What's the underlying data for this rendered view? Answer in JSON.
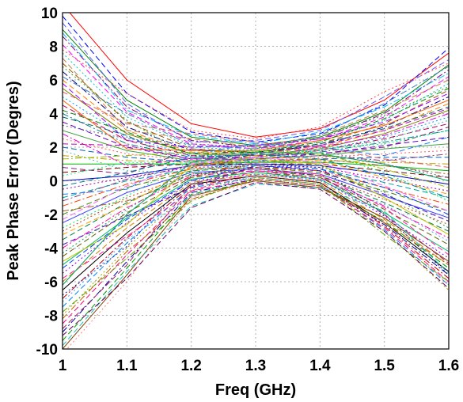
{
  "chart_data": {
    "type": "line",
    "title": "",
    "xlabel": "Freq (GHz)",
    "ylabel": "Peak Phase Error (Degres)",
    "xlim": [
      1.0,
      1.6
    ],
    "ylim": [
      -10,
      10
    ],
    "x_ticks": [
      "1",
      "1.1",
      "1.2",
      "1.3",
      "1.4",
      "1.5",
      "1.6"
    ],
    "y_ticks": [
      "10",
      "8",
      "6",
      "4",
      "2",
      "0",
      "-2",
      "-4",
      "-6",
      "-8",
      "-10"
    ],
    "grid": true,
    "legend": "none",
    "x": [
      1.0,
      1.1,
      1.2,
      1.3,
      1.4,
      1.5,
      1.6
    ],
    "series": [
      {
        "color": "#ff0000",
        "dash": "solid",
        "values": [
          10.5,
          6.0,
          3.4,
          2.6,
          3.1,
          4.8,
          7.6
        ]
      },
      {
        "color": "#0000ff",
        "dash": "dashed",
        "values": [
          9.8,
          5.2,
          2.9,
          2.3,
          2.8,
          4.5,
          7.9
        ]
      },
      {
        "color": "#008000",
        "dash": "solid",
        "values": [
          9.0,
          4.8,
          2.6,
          2.1,
          2.6,
          4.1,
          6.9
        ]
      },
      {
        "color": "#800080",
        "dash": "dashdot",
        "values": [
          8.6,
          4.4,
          2.4,
          2.0,
          2.5,
          4.0,
          6.6
        ]
      },
      {
        "color": "#ff00ff",
        "dash": "dashed",
        "values": [
          8.1,
          4.1,
          2.2,
          1.9,
          2.4,
          3.8,
          6.2
        ]
      },
      {
        "color": "#00c0c0",
        "dash": "dotted",
        "values": [
          7.6,
          3.8,
          2.0,
          1.8,
          2.3,
          3.6,
          5.8
        ]
      },
      {
        "color": "#a05000",
        "dash": "dashed",
        "values": [
          7.0,
          3.5,
          1.9,
          1.7,
          2.2,
          3.4,
          5.4
        ]
      },
      {
        "color": "#000080",
        "dash": "dashdot",
        "values": [
          6.5,
          3.2,
          1.8,
          1.7,
          2.1,
          3.2,
          5.0
        ]
      },
      {
        "color": "#ff8000",
        "dash": "dashed",
        "values": [
          6.0,
          3.0,
          1.7,
          1.6,
          2.0,
          3.0,
          4.6
        ]
      },
      {
        "color": "#808000",
        "dash": "solid",
        "values": [
          5.5,
          2.8,
          1.6,
          1.5,
          1.9,
          2.8,
          4.2
        ]
      },
      {
        "color": "#00a0ff",
        "dash": "dotted",
        "values": [
          5.0,
          2.6,
          1.5,
          1.5,
          1.8,
          2.6,
          3.8
        ]
      },
      {
        "color": "#c00060",
        "dash": "dashed",
        "values": [
          4.5,
          2.4,
          1.5,
          1.4,
          1.8,
          2.5,
          3.4
        ]
      },
      {
        "color": "#008080",
        "dash": "dashdot",
        "values": [
          4.0,
          2.2,
          1.4,
          1.4,
          1.7,
          2.3,
          3.0
        ]
      },
      {
        "color": "#6000c0",
        "dash": "dashed",
        "values": [
          3.5,
          2.0,
          1.3,
          1.3,
          1.6,
          2.1,
          2.6
        ]
      },
      {
        "color": "#40a040",
        "dash": "solid",
        "values": [
          3.0,
          1.8,
          1.2,
          1.3,
          1.5,
          1.9,
          2.2
        ]
      },
      {
        "color": "#ff6060",
        "dash": "dotted",
        "values": [
          2.5,
          1.6,
          1.2,
          1.2,
          1.4,
          1.6,
          1.8
        ]
      },
      {
        "color": "#0060c0",
        "dash": "dashed",
        "values": [
          2.0,
          1.4,
          1.1,
          1.2,
          1.3,
          1.4,
          1.4
        ]
      },
      {
        "color": "#c0a000",
        "dash": "dashdot",
        "values": [
          1.5,
          1.2,
          1.1,
          1.1,
          1.2,
          1.1,
          1.0
        ]
      },
      {
        "color": "#00b000",
        "dash": "solid",
        "values": [
          1.0,
          1.0,
          1.0,
          1.1,
          1.1,
          0.9,
          0.6
        ]
      },
      {
        "color": "#800000",
        "dash": "dashed",
        "values": [
          0.5,
          0.8,
          1.0,
          1.0,
          1.0,
          0.6,
          0.2
        ]
      },
      {
        "color": "#0000c0",
        "dash": "solid",
        "values": [
          0.0,
          0.3,
          0.9,
          1.0,
          0.9,
          0.4,
          -0.2
        ]
      },
      {
        "color": "#a000a0",
        "dash": "dotted",
        "values": [
          -0.5,
          0.2,
          0.8,
          0.9,
          0.8,
          0.1,
          -0.6
        ]
      },
      {
        "color": "#00a0a0",
        "dash": "dashed",
        "values": [
          -1.0,
          0.0,
          0.7,
          0.9,
          0.7,
          -0.1,
          -1.0
        ]
      },
      {
        "color": "#ff4000",
        "dash": "dashdot",
        "values": [
          -1.5,
          -0.2,
          0.7,
          0.8,
          0.6,
          -0.4,
          -1.4
        ]
      },
      {
        "color": "#408000",
        "dash": "dashed",
        "values": [
          -2.0,
          -0.4,
          0.6,
          0.8,
          0.5,
          -0.6,
          -1.8
        ]
      },
      {
        "color": "#4040ff",
        "dash": "solid",
        "values": [
          -2.5,
          -0.7,
          0.5,
          0.7,
          0.4,
          -0.9,
          -2.2
        ]
      },
      {
        "color": "#c04000",
        "dash": "dotted",
        "values": [
          -3.0,
          -1.0,
          0.4,
          0.7,
          0.3,
          -1.1,
          -2.6
        ]
      },
      {
        "color": "#008040",
        "dash": "dashed",
        "values": [
          -3.5,
          -1.3,
          0.4,
          0.6,
          0.3,
          -1.3,
          -3.0
        ]
      },
      {
        "color": "#ff00a0",
        "dash": "dashdot",
        "values": [
          -4.0,
          -1.6,
          0.3,
          0.6,
          0.2,
          -1.5,
          -3.4
        ]
      },
      {
        "color": "#606000",
        "dash": "dashed",
        "values": [
          -4.5,
          -1.9,
          0.2,
          0.5,
          0.2,
          -1.7,
          -3.8
        ]
      },
      {
        "color": "#00c060",
        "dash": "solid",
        "values": [
          -5.0,
          -2.2,
          0.1,
          0.5,
          0.1,
          -1.9,
          -4.2
        ]
      },
      {
        "color": "#8000ff",
        "dash": "dotted",
        "values": [
          -5.5,
          -2.5,
          0.0,
          0.4,
          0.1,
          -2.1,
          -4.6
        ]
      },
      {
        "color": "#d08000",
        "dash": "dashed",
        "values": [
          -6.0,
          -2.8,
          -0.1,
          0.4,
          0.0,
          -2.3,
          -5.0
        ]
      },
      {
        "color": "#000000",
        "dash": "solid",
        "values": [
          -6.5,
          -3.1,
          -0.2,
          0.3,
          -0.1,
          -2.5,
          -5.4
        ]
      },
      {
        "color": "#c00000",
        "dash": "dashdot",
        "values": [
          -7.0,
          -3.4,
          -0.3,
          0.3,
          -0.1,
          -2.7,
          -5.8
        ]
      },
      {
        "color": "#0080ff",
        "dash": "dashed",
        "values": [
          -7.5,
          -3.7,
          -0.4,
          0.2,
          -0.2,
          -2.9,
          -6.2
        ]
      },
      {
        "color": "#a0a000",
        "dash": "dotted",
        "values": [
          -8.0,
          -4.0,
          -0.5,
          0.2,
          -0.2,
          -3.0,
          -6.5
        ]
      },
      {
        "color": "#ff0080",
        "dash": "dashed",
        "values": [
          -8.5,
          -4.4,
          -0.6,
          0.1,
          -0.3,
          -2.8,
          -6.0
        ]
      },
      {
        "color": "#0000a0",
        "dash": "dashdot",
        "values": [
          -9.0,
          -4.8,
          -0.7,
          0.1,
          -0.3,
          -2.6,
          -5.6
        ]
      },
      {
        "color": "#00a000",
        "dash": "dashed",
        "values": [
          -9.5,
          -5.2,
          -0.8,
          0.0,
          -0.4,
          -2.4,
          -5.2
        ]
      },
      {
        "color": "#804000",
        "dash": "solid",
        "values": [
          -10.0,
          -5.6,
          -0.9,
          0.0,
          -0.4,
          -2.2,
          -4.8
        ]
      },
      {
        "color": "#ff8080",
        "dash": "dotted",
        "values": [
          -10.3,
          -6.0,
          -1.0,
          -0.1,
          -0.5,
          -2.4,
          -6.2
        ]
      },
      {
        "color": "#6060ff",
        "dash": "dashed",
        "values": [
          9.4,
          4.6,
          2.3,
          2.4,
          3.0,
          5.0,
          7.2
        ]
      },
      {
        "color": "#00c0ff",
        "dash": "dashdot",
        "values": [
          8.8,
          4.2,
          2.7,
          2.2,
          2.9,
          4.4,
          6.4
        ]
      },
      {
        "color": "#c08040",
        "dash": "dashed",
        "values": [
          7.3,
          3.0,
          2.5,
          2.0,
          2.7,
          4.2,
          6.0
        ]
      },
      {
        "color": "#20a020",
        "dash": "dotted",
        "values": [
          6.8,
          3.6,
          1.4,
          1.9,
          2.6,
          3.9,
          5.6
        ]
      },
      {
        "color": "#a000ff",
        "dash": "dashed",
        "values": [
          5.8,
          2.4,
          2.0,
          2.1,
          2.5,
          3.5,
          5.2
        ]
      },
      {
        "color": "#ff6000",
        "dash": "solid",
        "values": [
          4.8,
          1.9,
          1.8,
          1.8,
          2.4,
          3.3,
          4.8
        ]
      },
      {
        "color": "#006060",
        "dash": "dashed",
        "values": [
          3.8,
          2.7,
          0.8,
          1.6,
          2.2,
          3.1,
          4.4
        ]
      },
      {
        "color": "#e000e0",
        "dash": "dashdot",
        "values": [
          2.8,
          0.9,
          1.3,
          1.4,
          2.0,
          2.7,
          4.0
        ]
      },
      {
        "color": "#40c0a0",
        "dash": "dotted",
        "values": [
          1.8,
          0.6,
          0.5,
          1.2,
          1.8,
          2.4,
          3.6
        ]
      },
      {
        "color": "#802080",
        "dash": "dashed",
        "values": [
          0.8,
          0.4,
          1.9,
          1.5,
          1.6,
          2.0,
          3.2
        ]
      },
      {
        "color": "#2080ff",
        "dash": "dashed",
        "values": [
          -0.8,
          -0.5,
          1.6,
          2.2,
          2.0,
          1.5,
          2.6
        ]
      },
      {
        "color": "#a06020",
        "dash": "dashdot",
        "values": [
          -1.8,
          -1.2,
          0.2,
          1.1,
          1.3,
          0.9,
          0.4
        ]
      },
      {
        "color": "#00e060",
        "dash": "dotted",
        "values": [
          -2.8,
          -0.9,
          1.2,
          1.8,
          1.7,
          0.5,
          -1.2
        ]
      },
      {
        "color": "#4000c0",
        "dash": "dashed",
        "values": [
          -3.8,
          -2.1,
          -0.4,
          0.9,
          0.6,
          -0.8,
          -2.4
        ]
      },
      {
        "color": "#c0c000",
        "dash": "solid",
        "values": [
          -4.8,
          -2.6,
          0.9,
          1.3,
          1.0,
          -1.0,
          -3.2
        ]
      },
      {
        "color": "#ff20a0",
        "dash": "dashed",
        "values": [
          -5.8,
          -3.3,
          -0.6,
          0.6,
          0.4,
          -1.6,
          -4.4
        ]
      },
      {
        "color": "#2020a0",
        "dash": "dotted",
        "values": [
          -6.8,
          -3.9,
          0.3,
          1.0,
          0.8,
          -2.0,
          -5.6
        ]
      },
      {
        "color": "#60a000",
        "dash": "dashdot",
        "values": [
          -7.8,
          -4.6,
          -1.2,
          0.2,
          -0.2,
          -3.2,
          -6.0
        ]
      },
      {
        "color": "#a02060",
        "dash": "dashed",
        "values": [
          -8.8,
          -5.0,
          -0.2,
          0.8,
          0.3,
          -2.0,
          -4.9
        ]
      },
      {
        "color": "#20c0c0",
        "dash": "dashed",
        "values": [
          -9.8,
          -5.4,
          -1.5,
          -0.2,
          -0.4,
          -1.8,
          -5.5
        ]
      },
      {
        "color": "#ff4040",
        "dash": "dotted",
        "values": [
          7.8,
          5.2,
          3.0,
          2.5,
          3.2,
          5.3,
          7.0
        ]
      },
      {
        "color": "#4080c0",
        "dash": "dashdot",
        "values": [
          6.2,
          4.0,
          2.1,
          1.9,
          2.7,
          4.6,
          6.8
        ]
      },
      {
        "color": "#008000",
        "dash": "dashed",
        "values": [
          4.2,
          2.9,
          1.6,
          1.7,
          2.3,
          3.7,
          5.5
        ]
      },
      {
        "color": "#c000c0",
        "dash": "dashed",
        "values": [
          2.2,
          2.1,
          1.3,
          1.6,
          2.1,
          3.0,
          4.3
        ]
      },
      {
        "color": "#00ff80",
        "dash": "dotted",
        "values": [
          0.3,
          1.1,
          1.0,
          1.4,
          1.9,
          2.2,
          3.0
        ]
      },
      {
        "color": "#804080",
        "dash": "dashdot",
        "values": [
          -1.2,
          0.1,
          0.9,
          1.3,
          1.5,
          1.2,
          1.6
        ]
      },
      {
        "color": "#ffa000",
        "dash": "dashed",
        "values": [
          -3.2,
          -1.4,
          0.8,
          1.5,
          1.2,
          0.2,
          -0.8
        ]
      },
      {
        "color": "#0040ff",
        "dash": "dashed",
        "values": [
          -5.2,
          -2.3,
          0.0,
          0.9,
          0.7,
          -0.4,
          -2.0
        ]
      },
      {
        "color": "#40a0ff",
        "dash": "dotted",
        "values": [
          -7.2,
          -3.5,
          -0.9,
          0.4,
          0.0,
          -1.4,
          -3.6
        ]
      },
      {
        "color": "#c06000",
        "dash": "dashdot",
        "values": [
          -8.2,
          -4.2,
          -1.1,
          0.1,
          -0.3,
          -2.5,
          -5.0
        ]
      },
      {
        "color": "#600060",
        "dash": "dashed",
        "values": [
          -9.2,
          -5.8,
          -1.6,
          -0.1,
          -0.5,
          -3.0,
          -6.4
        ]
      },
      {
        "color": "#00a060",
        "dash": "solid",
        "values": [
          -6.2,
          -2.0,
          1.1,
          1.7,
          1.6,
          1.0,
          0.0
        ]
      },
      {
        "color": "#e06060",
        "dash": "dashed",
        "values": [
          5.3,
          3.4,
          2.8,
          2.3,
          2.0,
          1.3,
          0.8
        ]
      },
      {
        "color": "#6060a0",
        "dash": "dotted",
        "values": [
          3.3,
          2.5,
          2.2,
          2.0,
          1.8,
          1.0,
          0.2
        ]
      },
      {
        "color": "#a0c000",
        "dash": "dashdot",
        "values": [
          1.3,
          1.5,
          1.7,
          1.8,
          1.6,
          0.7,
          -0.4
        ]
      },
      {
        "color": "#0080a0",
        "dash": "dashed",
        "values": [
          -0.3,
          0.5,
          1.4,
          1.6,
          1.3,
          0.3,
          -1.0
        ]
      },
      {
        "color": "#ff60ff",
        "dash": "dashed",
        "values": [
          -2.3,
          -0.3,
          1.0,
          1.4,
          1.1,
          -0.3,
          -1.8
        ]
      },
      {
        "color": "#20a060",
        "dash": "dotted",
        "values": [
          -4.3,
          -1.7,
          0.6,
          1.2,
          0.9,
          -0.7,
          -2.8
        ]
      }
    ]
  }
}
